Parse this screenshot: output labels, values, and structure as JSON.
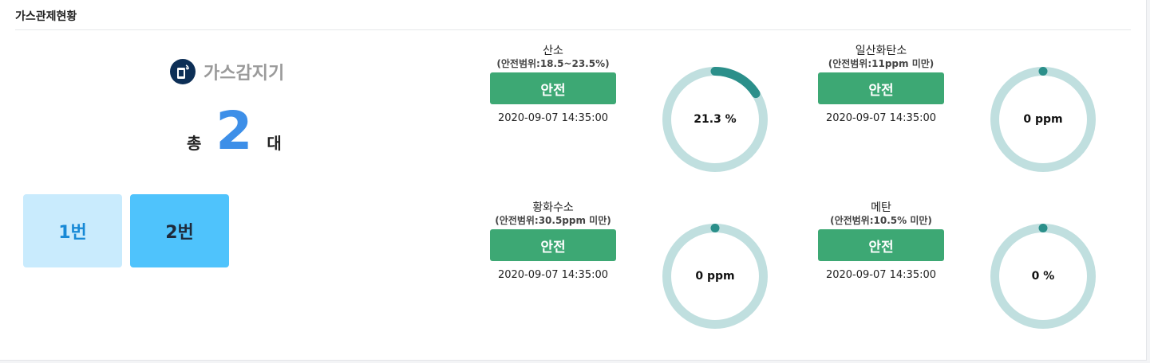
{
  "panel": {
    "title": "가스관제현황"
  },
  "summary": {
    "detector_label": "가스감지기",
    "total_prefix": "총",
    "total_count": "2",
    "total_suffix": "대",
    "units": [
      {
        "label": "1번"
      },
      {
        "label": "2번"
      }
    ]
  },
  "gases": [
    {
      "name": "산소",
      "range": "(안전범위:18.5~23.5%)",
      "status": "안전",
      "time": "2020-09-07 14:35:00",
      "display": "21.3 %",
      "fill_fraction": 0.16
    },
    {
      "name": "일산화탄소",
      "range": "(안전범위:11ppm 미만)",
      "status": "안전",
      "time": "2020-09-07 14:35:00",
      "display": "0 ppm",
      "fill_fraction": 0
    },
    {
      "name": "황화수소",
      "range": "(안전범위:30.5ppm 미만)",
      "status": "안전",
      "time": "2020-09-07 14:35:00",
      "display": "0 ppm",
      "fill_fraction": 0
    },
    {
      "name": "메탄",
      "range": "(안전범위:10.5% 미만)",
      "status": "안전",
      "time": "2020-09-07 14:35:00",
      "display": "0 %",
      "fill_fraction": 0
    }
  ],
  "colors": {
    "gauge_track": "#c0dfdf",
    "gauge_fill": "#2b8f8a",
    "status_safe": "#3da874"
  }
}
